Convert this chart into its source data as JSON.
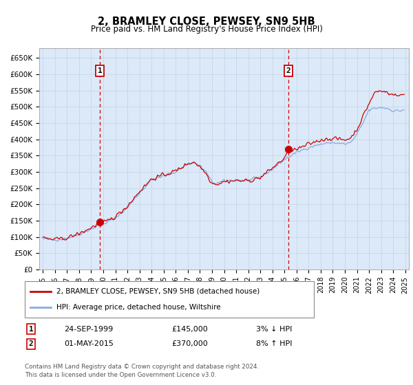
{
  "title": "2, BRAMLEY CLOSE, PEWSEY, SN9 5HB",
  "subtitle": "Price paid vs. HM Land Registry's House Price Index (HPI)",
  "ylabel_ticks": [
    "£0",
    "£50K",
    "£100K",
    "£150K",
    "£200K",
    "£250K",
    "£300K",
    "£350K",
    "£400K",
    "£450K",
    "£500K",
    "£550K",
    "£600K",
    "£650K"
  ],
  "ytick_values": [
    0,
    50000,
    100000,
    150000,
    200000,
    250000,
    300000,
    350000,
    400000,
    450000,
    500000,
    550000,
    600000,
    650000
  ],
  "ylim": [
    0,
    680000
  ],
  "xlim_start": 1994.7,
  "xlim_end": 2025.3,
  "background_color": "#dce9f8",
  "plot_bg_color": "#dce9f8",
  "grid_color": "#c8d8ec",
  "transaction1_date": "24-SEP-1999",
  "transaction1_price": 145000,
  "transaction1_label": "1",
  "transaction1_hpi_diff": "3% ↓ HPI",
  "transaction2_date": "01-MAY-2015",
  "transaction2_price": 370000,
  "transaction2_label": "2",
  "transaction2_hpi_diff": "8% ↑ HPI",
  "line1_label": "2, BRAMLEY CLOSE, PEWSEY, SN9 5HB (detached house)",
  "line2_label": "HPI: Average price, detached house, Wiltshire",
  "line1_color": "#cc0000",
  "line2_color": "#88aadd",
  "footer": "Contains HM Land Registry data © Crown copyright and database right 2024.\nThis data is licensed under the Open Government Licence v3.0.",
  "marker1_x": 1999.73,
  "marker1_y": 145000,
  "marker2_x": 2015.33,
  "marker2_y": 370000
}
